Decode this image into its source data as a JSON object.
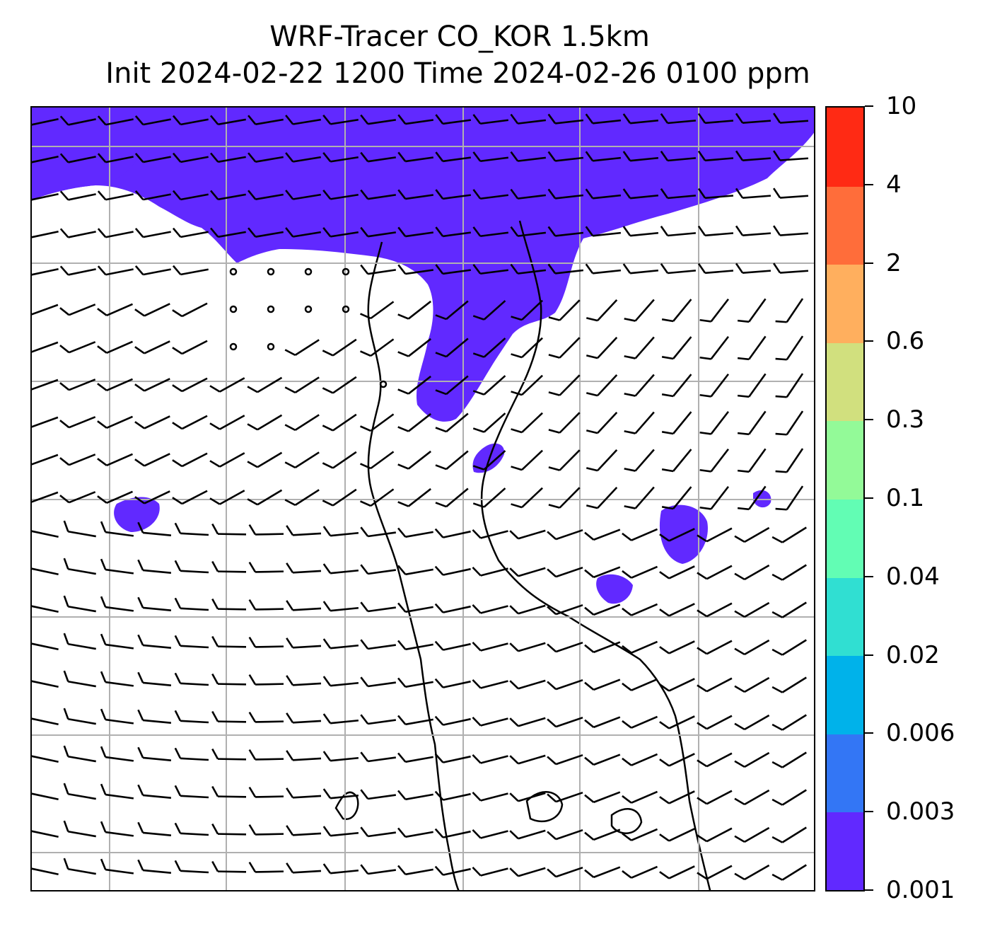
{
  "title": {
    "line1": "WRF-Tracer CO_KOR 1.5km",
    "line2": "Init 2024-02-22 1200 Time 2024-02-26 0100 ppm"
  },
  "map": {
    "plume_color": "#6129ff",
    "coastline_color": "#000000",
    "gridline_color": "#b0b0b0",
    "wind_barb_color": "#000000"
  },
  "colorbar": {
    "ticks": [
      "0.001",
      "0.003",
      "0.006",
      "0.02",
      "0.04",
      "0.1",
      "0.3",
      "0.6",
      "2",
      "4",
      "10"
    ],
    "colors": [
      "#6129ff",
      "#3376f5",
      "#00b2ea",
      "#30dfd2",
      "#62fdb4",
      "#93fa98",
      "#d1e07e",
      "#ffaf5e",
      "#ff6d3a",
      "#ff2a14"
    ]
  }
}
